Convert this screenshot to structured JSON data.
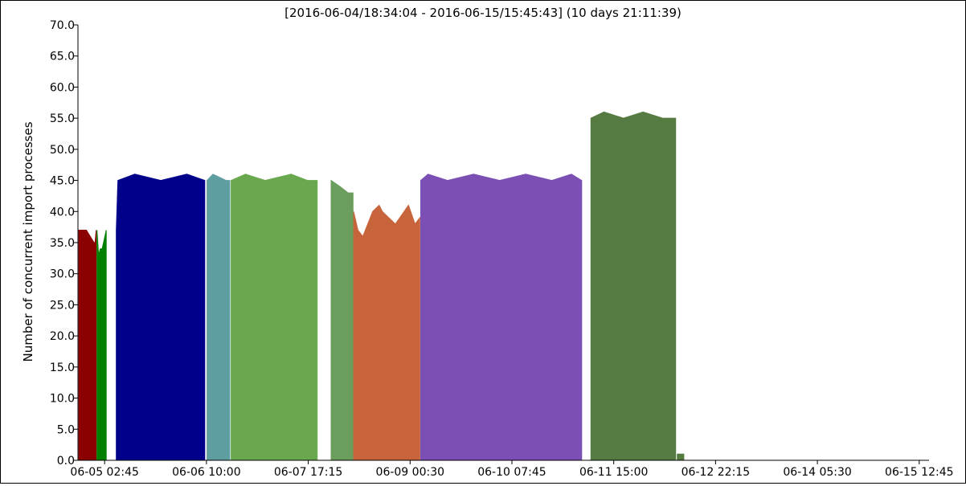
{
  "chart_data": {
    "type": "area",
    "title": "[2016-06-04/18:34:04 - 2016-06-15/15:45:43] (10 days 21:11:39)",
    "xlabel": "",
    "ylabel": "Number of concurrent import processes",
    "ylim": [
      0,
      70
    ],
    "yticks": [
      "0.0",
      "5.0",
      "10.0",
      "15.0",
      "20.0",
      "25.0",
      "30.0",
      "35.0",
      "40.0",
      "45.0",
      "50.0",
      "55.0",
      "60.0",
      "65.0",
      "70.0"
    ],
    "xlim": [
      "2016-06-04 18:34:04",
      "2016-06-15 15:45:43"
    ],
    "xticks": [
      {
        "t": "2016-06-05 02:45",
        "label": "06-05 02:45"
      },
      {
        "t": "2016-06-06 10:00",
        "label": "06-06 10:00"
      },
      {
        "t": "2016-06-07 17:15",
        "label": "06-07 17:15"
      },
      {
        "t": "2016-06-09 00:30",
        "label": "06-09 00:30"
      },
      {
        "t": "2016-06-10 07:45",
        "label": "06-10 07:45"
      },
      {
        "t": "2016-06-11 15:00",
        "label": "06-11 15:00"
      },
      {
        "t": "2016-06-12 22:15",
        "label": "06-12 22:15"
      },
      {
        "t": "2016-06-14 05:30",
        "label": "06-14 05:30"
      },
      {
        "t": "2016-06-15 12:45",
        "label": "06-15 12:45"
      }
    ],
    "grid": false,
    "legend": "none",
    "series": [
      {
        "color": "#8b0000",
        "points": [
          [
            "2016-06-04 18:50",
            37
          ],
          [
            "2016-06-04 19:20",
            37
          ],
          [
            "2016-06-04 20:40",
            37
          ],
          [
            "2016-06-04 21:10",
            37
          ],
          [
            "2016-06-04 23:30",
            35
          ],
          [
            "2016-06-04 23:50",
            35
          ],
          [
            "2016-06-05 00:10",
            37
          ]
        ]
      },
      {
        "color": "#008000",
        "points": [
          [
            "2016-06-05 00:25",
            37
          ],
          [
            "2016-06-05 00:55",
            33
          ],
          [
            "2016-06-05 01:25",
            34
          ],
          [
            "2016-06-05 02:00",
            34
          ],
          [
            "2016-06-05 03:15",
            37
          ]
        ]
      },
      {
        "color": "#00008b",
        "points": [
          [
            "2016-06-05 06:20",
            37
          ],
          [
            "2016-06-05 06:50",
            45
          ],
          [
            "2016-06-05 12:00",
            46
          ],
          [
            "2016-06-05 20:00",
            45
          ],
          [
            "2016-06-06 04:00",
            46
          ],
          [
            "2016-06-06 09:30",
            45
          ]
        ]
      },
      {
        "color": "#5f9ea0",
        "points": [
          [
            "2016-06-06 10:10",
            45
          ],
          [
            "2016-06-06 12:00",
            46
          ],
          [
            "2016-06-06 16:00",
            45
          ],
          [
            "2016-06-06 17:10",
            45
          ]
        ]
      },
      {
        "color": "#6aa84f",
        "points": [
          [
            "2016-06-06 17:35",
            45
          ],
          [
            "2016-06-06 22:00",
            46
          ],
          [
            "2016-06-07 04:00",
            45
          ],
          [
            "2016-06-07 12:00",
            46
          ],
          [
            "2016-06-07 17:00",
            45
          ],
          [
            "2016-06-07 20:00",
            45
          ]
        ]
      },
      {
        "color": "#6b9e5c",
        "points": [
          [
            "2016-06-08 00:15",
            45
          ],
          [
            "2016-06-08 03:00",
            44
          ],
          [
            "2016-06-08 05:30",
            43
          ],
          [
            "2016-06-08 07:00",
            43
          ]
        ]
      },
      {
        "color": "#c8643c",
        "points": [
          [
            "2016-06-08 07:10",
            40
          ],
          [
            "2016-06-08 08:30",
            37
          ],
          [
            "2016-06-08 10:00",
            36
          ],
          [
            "2016-06-08 13:00",
            40
          ],
          [
            "2016-06-08 15:00",
            41
          ],
          [
            "2016-06-08 16:00",
            40
          ],
          [
            "2016-06-08 20:00",
            38
          ],
          [
            "2016-06-09 00:00",
            41
          ],
          [
            "2016-06-09 02:00",
            38
          ],
          [
            "2016-06-09 03:30",
            39
          ]
        ]
      },
      {
        "color": "#7b4fb3",
        "points": [
          [
            "2016-06-09 03:45",
            45
          ],
          [
            "2016-06-09 06:00",
            46
          ],
          [
            "2016-06-09 12:00",
            45
          ],
          [
            "2016-06-09 20:00",
            46
          ],
          [
            "2016-06-10 04:00",
            45
          ],
          [
            "2016-06-10 12:00",
            46
          ],
          [
            "2016-06-10 20:00",
            45
          ],
          [
            "2016-06-11 02:00",
            46
          ],
          [
            "2016-06-11 05:10",
            45
          ]
        ]
      },
      {
        "color": "#557a42",
        "points": [
          [
            "2016-06-11 08:00",
            55
          ],
          [
            "2016-06-11 12:00",
            56
          ],
          [
            "2016-06-11 18:00",
            55
          ],
          [
            "2016-06-12 00:00",
            56
          ],
          [
            "2016-06-12 06:00",
            55
          ],
          [
            "2016-06-12 10:00",
            55
          ]
        ]
      },
      {
        "color": "#557a42",
        "points": [
          [
            "2016-06-12 10:30",
            1
          ],
          [
            "2016-06-12 12:30",
            1
          ]
        ]
      }
    ]
  }
}
